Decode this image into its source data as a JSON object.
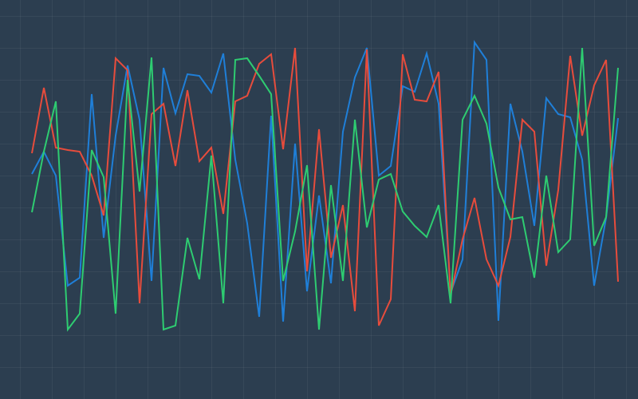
{
  "chart_data": {
    "type": "line",
    "ylim": [
      0,
      100
    ],
    "series": [
      {
        "color": "#1f7fd8",
        "values": [
          56.4,
          62,
          56,
          28.4,
          30.4,
          76.4,
          40.4,
          66,
          83.6,
          70,
          29.6,
          83,
          71.6,
          81.4,
          81,
          76.8,
          86.6,
          60,
          44,
          20.6,
          71,
          19.4,
          64,
          27,
          51,
          29,
          67,
          80.6,
          88,
          56,
          58.4,
          78.4,
          77,
          86.6,
          74,
          26.6,
          35,
          89.4,
          85,
          19.6,
          74,
          62,
          43.4,
          75.4,
          71.4,
          70.6,
          60,
          28.4,
          45.4,
          70.4
        ]
      },
      {
        "color": "#e74c3c",
        "values": [
          61.6,
          78,
          63,
          62.4,
          62,
          56,
          46,
          85.4,
          82.4,
          24,
          71.4,
          74,
          58.4,
          77.4,
          59.6,
          63,
          46.4,
          74.6,
          76,
          84,
          86.4,
          62.6,
          88,
          32,
          67.6,
          35.4,
          48.6,
          22,
          87.6,
          18.4,
          25,
          86.4,
          75,
          74.6,
          82,
          26,
          40,
          50.4,
          35,
          28.4,
          40.6,
          70,
          67,
          33.4,
          52.4,
          86,
          66,
          78.6,
          85,
          29.4
        ]
      },
      {
        "color": "#2ecc71",
        "values": [
          46.8,
          62,
          74.6,
          17.4,
          21.4,
          62.4,
          55.6,
          21.4,
          80,
          52,
          85.6,
          17.4,
          18.4,
          40.4,
          30,
          61,
          24,
          85,
          85.4,
          81,
          76.4,
          29.6,
          42,
          58.6,
          17.4,
          53.6,
          29.6,
          70,
          43,
          55,
          56.4,
          47,
          43.4,
          40.6,
          48.6,
          24,
          70,
          76,
          69,
          53,
          45,
          45.6,
          30.4,
          56,
          36.8,
          40,
          88,
          38.4,
          45.6,
          83
        ]
      }
    ]
  }
}
